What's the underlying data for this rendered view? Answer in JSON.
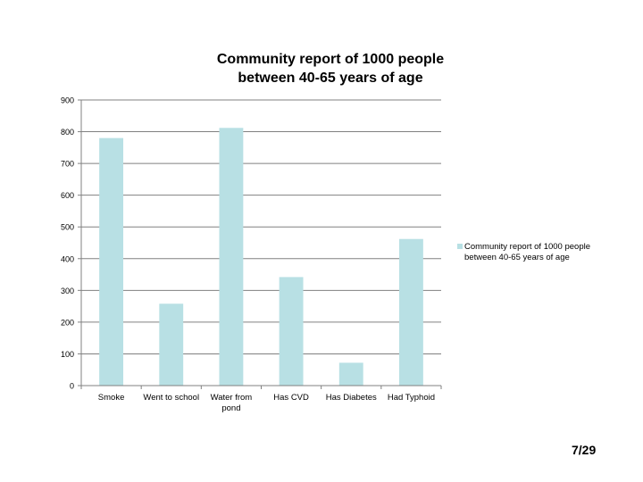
{
  "colors": {
    "bar": "#b8e0e4",
    "axis": "#808080",
    "grid": "#808080"
  },
  "chart_data": {
    "type": "bar",
    "title_lines": [
      "Community report of 1000 people",
      "between 40-65 years of age"
    ],
    "categories": [
      "Smoke",
      "Went to school",
      "Water from pond",
      "Has CVD",
      "Has Diabetes",
      "Had Typhoid"
    ],
    "category_lines": [
      [
        "Smoke"
      ],
      [
        "Went to school"
      ],
      [
        "Water from",
        "pond"
      ],
      [
        "Has CVD"
      ],
      [
        "Has Diabetes"
      ],
      [
        "Had Typhoid"
      ]
    ],
    "series": [
      {
        "name": "Community report of 1000 people between 40-65 years of age",
        "values": [
          780,
          258,
          812,
          342,
          72,
          462
        ]
      }
    ],
    "ylim": [
      0,
      900
    ],
    "yticks": [
      0,
      100,
      200,
      300,
      400,
      500,
      600,
      700,
      800,
      900
    ],
    "grid": true,
    "legend_position": "right",
    "legend_lines": [
      "Community report of 1000 people",
      "between 40-65 years of age"
    ]
  },
  "page_number": "7/29"
}
